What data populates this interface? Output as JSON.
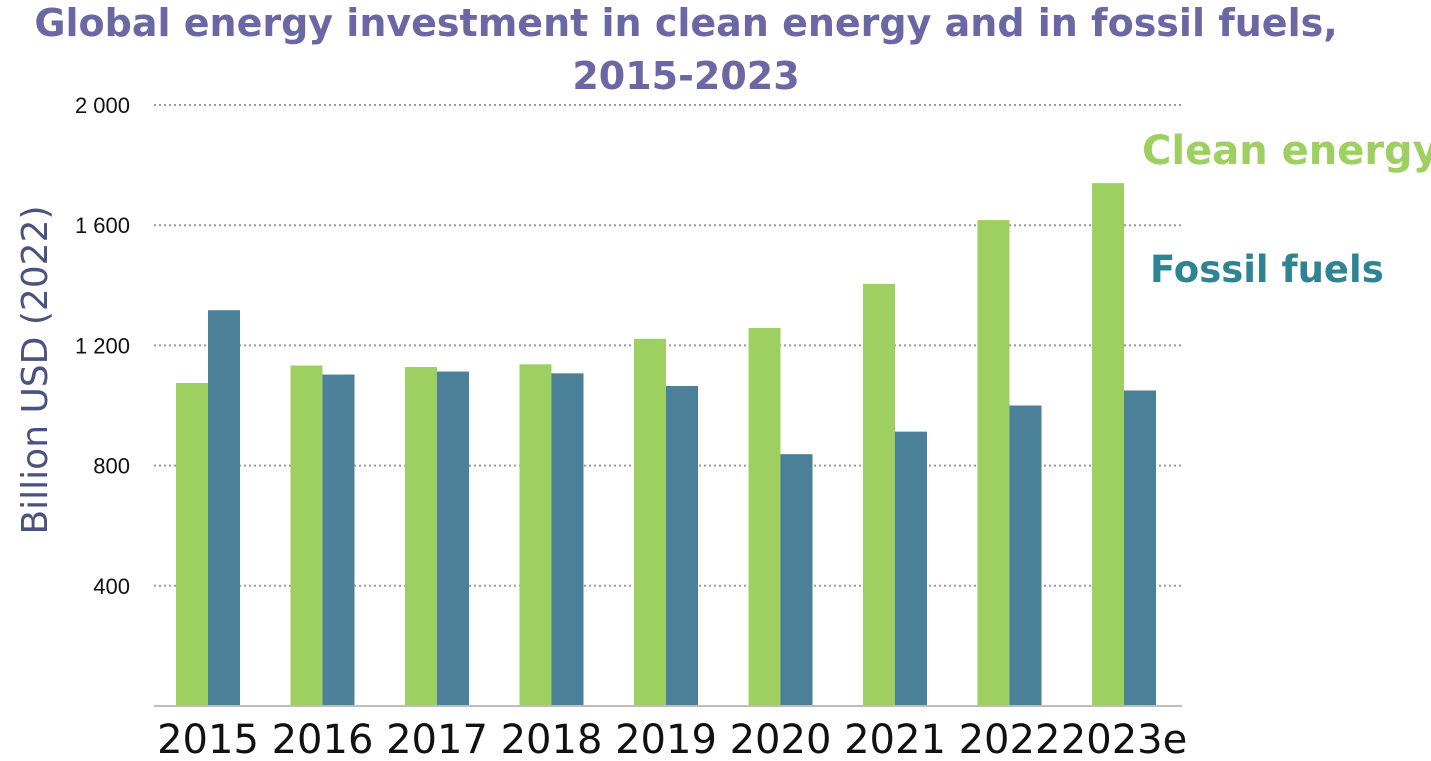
{
  "chart_data": {
    "type": "bar",
    "title_lines": [
      "Global energy investment in clean energy and in fossil fuels,",
      "2015-2023"
    ],
    "xlabel": "",
    "ylabel": "Billion USD (2022)",
    "categories": [
      "2015",
      "2016",
      "2017",
      "2018",
      "2019",
      "2020",
      "2021",
      "2022",
      "2023e"
    ],
    "series": [
      {
        "name": "Clean energy",
        "color": "#9dcf61",
        "values": [
          1075,
          1133,
          1128,
          1137,
          1222,
          1258,
          1405,
          1617,
          1740
        ]
      },
      {
        "name": "Fossil fuels",
        "color": "#4a8198",
        "values": [
          1317,
          1103,
          1113,
          1107,
          1065,
          838,
          913,
          1000,
          1050
        ]
      }
    ],
    "ylim": [
      0,
      2000
    ],
    "yticks": [
      {
        "value": 400,
        "label": "400"
      },
      {
        "value": 800,
        "label": "800"
      },
      {
        "value": 1200,
        "label": "1 200"
      },
      {
        "value": 1600,
        "label": "1 600"
      },
      {
        "value": 2000,
        "label": "2 000"
      }
    ],
    "grid": true,
    "legend_placement": "right",
    "colors": {
      "title": "#6a67a4",
      "ylabel": "#4a5280",
      "clean_legend": "#9dcf61",
      "fossil_legend": "#2f8493",
      "grid": "#9a9a9a",
      "axis": "#bdbdbd",
      "tick_text": "#111111"
    }
  }
}
